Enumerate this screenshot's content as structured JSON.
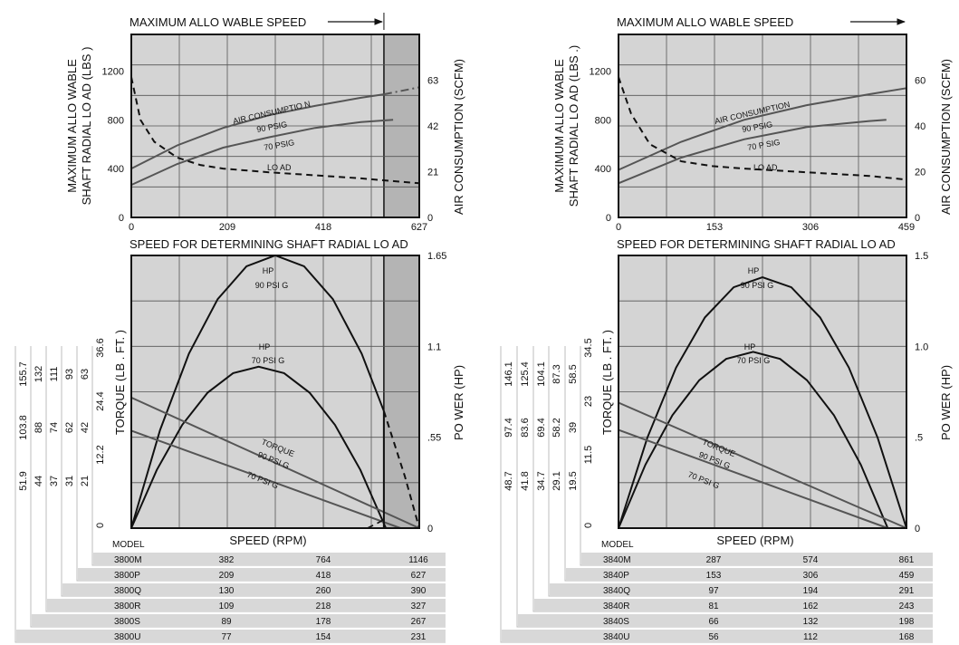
{
  "left": {
    "top_chart": {
      "max_speed_label": "MAXIMUM ALLO   WABLE SPEED",
      "y_left_title": [
        "MAXIMUM ALLO   WABLE",
        "SHAFT RADIAL LO    AD (LBS  )"
      ],
      "y_right_title": "AIR CONSUMPTION (SCFM)",
      "x_title": "SPEED FOR DETERMINING SHAFT RADIAL LO          AD",
      "x_ticks": [
        "0",
        "209",
        "418",
        "627"
      ],
      "y_left_ticks": [
        "0",
        "400",
        "800",
        "1200"
      ],
      "y_right_ticks": [
        "0",
        "21",
        "42",
        "63"
      ],
      "curve_labels": {
        "air": "AIR CONSUMPTIO     N",
        "psi90": "90 PSIG",
        "psi70": "70 PSIG",
        "load": "LO    AD"
      }
    },
    "bottom_chart": {
      "y_left_title": "TORQUE (LB    . FT. )",
      "y_right_title": "PO WER (HP)",
      "x_title": "SPEED (RPM)",
      "y_right_ticks": [
        "0",
        ".55",
        "1.1",
        "1.65"
      ],
      "hp_labels": [
        "HP",
        "90 PSI   G",
        "HP",
        "70 PSI   G"
      ],
      "torque_labels": [
        "TORQUE",
        "90 PSI   G",
        "70 PSI   G"
      ],
      "torque_columns": [
        [
          "0",
          "12.2",
          "24.4",
          "36.6"
        ],
        [
          "21",
          "42",
          "63"
        ],
        [
          "31",
          "62",
          "93"
        ],
        [
          "37",
          "74",
          "111"
        ],
        [
          "44",
          "88",
          "132"
        ],
        [
          "51.9",
          "103.8",
          "155.7"
        ]
      ]
    },
    "table": {
      "header": "MODEL",
      "rows": [
        [
          "3800M",
          "382",
          "764",
          "1146"
        ],
        [
          "3800P",
          "209",
          "418",
          "627"
        ],
        [
          "3800Q",
          "130",
          "260",
          "390"
        ],
        [
          "3800R",
          "109",
          "218",
          "327"
        ],
        [
          "3800S",
          "89",
          "178",
          "267"
        ],
        [
          "3800U",
          "77",
          "154",
          "231"
        ]
      ]
    }
  },
  "right": {
    "top_chart": {
      "max_speed_label": "MAXIMUM ALLO   WABLE SPEED",
      "y_left_title": [
        "MAXIMUM ALLO   WABLE",
        "SHAFT RADIAL LO    AD (LBS  .)"
      ],
      "y_right_title": "AIR CONSUMPTION (SCFM)",
      "x_title": "SPEED FOR DETERMINING SHAFT RADIAL LO          AD",
      "x_ticks": [
        "0",
        "153",
        "306",
        "459"
      ],
      "y_left_ticks": [
        "0",
        "400",
        "800",
        "1200"
      ],
      "y_right_ticks": [
        "0",
        "20",
        "40",
        "60"
      ],
      "curve_labels": {
        "air": "AIR CONSUMPTION",
        "psi90": "90 PSIG",
        "psi70": "70 P SIG",
        "load": "LO  AD"
      }
    },
    "bottom_chart": {
      "y_left_title": "TORQUE (LB    . FT. )",
      "y_right_title": "PO WER (HP)",
      "x_title": "SPEED (RPM)",
      "y_right_ticks": [
        "0",
        ".5",
        "1.0",
        "1.5"
      ],
      "hp_labels": [
        "HP",
        "90 PSI   G",
        "HP",
        "70 PSI   G"
      ],
      "torque_labels": [
        "TORQUE",
        "90 PSI   G",
        "70 PSI   G"
      ],
      "torque_columns": [
        [
          "0",
          "11.5",
          "23",
          "34.5"
        ],
        [
          "19.5",
          "39",
          "58.5"
        ],
        [
          "29.1",
          "58.2",
          "87.3"
        ],
        [
          "34.7",
          "69.4",
          "104.1"
        ],
        [
          "41.8",
          "83.6",
          "125.4"
        ],
        [
          "48.7",
          "97.4",
          "146.1"
        ]
      ]
    },
    "table": {
      "header": "MODEL",
      "rows": [
        [
          "3840M",
          "287",
          "574",
          "861"
        ],
        [
          "3840P",
          "153",
          "306",
          "459"
        ],
        [
          "3840Q",
          "97",
          "194",
          "291"
        ],
        [
          "3840R",
          "81",
          "162",
          "243"
        ],
        [
          "3840S",
          "66",
          "132",
          "198"
        ],
        [
          "3840U",
          "56",
          "112",
          "168"
        ]
      ]
    }
  },
  "colors": {
    "plot_bg": "#d4d4d4",
    "over_speed": "#b4b4b4",
    "grid": "#555555",
    "curve": "#555555",
    "dark": "#111111",
    "table_band": "#d8d8d8"
  },
  "chart_data": [
    {
      "type": "line",
      "title": "MAXIMUM ALLO   WABLE SPEED",
      "xlabel": "SPEED FOR DETERMINING SHAFT RADIAL LO          AD",
      "ylabel": "MAXIMUM ALLO   WABLE SHAFT RADIAL LO    AD (LBS  )",
      "y2label": "AIR CONSUMPTION (SCFM)",
      "xlim": [
        0,
        627
      ],
      "ylim": [
        0,
        1500
      ],
      "y2lim": [
        0,
        78.75
      ],
      "max_speed": 550,
      "grid": true,
      "series": [
        {
          "name": "AIR CONSUMPTIO     N",
          "label2": "90 PSIG",
          "axis": "right",
          "style": "solid",
          "x": [
            0,
            100,
            200,
            300,
            400,
            500,
            550
          ],
          "y": [
            21,
            31,
            38.5,
            44,
            48,
            51.5,
            53
          ]
        },
        {
          "axis": "right",
          "style": "dashdot",
          "x": [
            550,
            627
          ],
          "y": [
            53,
            56
          ]
        },
        {
          "name": "70 PSIG",
          "axis": "right",
          "style": "solid",
          "x": [
            0,
            100,
            200,
            300,
            400,
            500,
            570
          ],
          "y": [
            14,
            23,
            30,
            34.5,
            38.5,
            41,
            42
          ]
        },
        {
          "name": "LO    AD",
          "axis": "left",
          "style": "dashed",
          "x": [
            0,
            20,
            50,
            100,
            150,
            200,
            300,
            400,
            500,
            627
          ],
          "y": [
            1150,
            800,
            620,
            490,
            430,
            400,
            370,
            345,
            320,
            280
          ]
        }
      ]
    },
    {
      "type": "line",
      "xlabel": "SPEED (RPM)",
      "ylabel": "TORQUE (LB    . FT. )",
      "y2label": "PO WER (HP)",
      "xlim": [
        0,
        1
      ],
      "ylim": [
        0,
        1.65
      ],
      "y2lim": [
        0,
        1.65
      ],
      "x_units": "fraction of free speed",
      "max_speed_fraction": 0.877,
      "grid": true,
      "series": [
        {
          "name": "HP 90 PSI   G",
          "style": "solid",
          "x": [
            0,
            0.1,
            0.2,
            0.3,
            0.4,
            0.5,
            0.6,
            0.7,
            0.8,
            0.877
          ],
          "y": [
            0,
            0.594,
            1.056,
            1.386,
            1.584,
            1.65,
            1.584,
            1.386,
            1.056,
            0.708
          ]
        },
        {
          "style": "dashed",
          "x": [
            0.877,
            0.95,
            1.0
          ],
          "y": [
            0.708,
            0.313,
            0
          ]
        },
        {
          "name": "HP 70 PSI   G",
          "style": "solid",
          "x": [
            0,
            0.0884,
            0.1768,
            0.2652,
            0.3536,
            0.442,
            0.5304,
            0.6188,
            0.7072,
            0.7956,
            0.884
          ],
          "y": [
            0,
            0.352,
            0.625,
            0.82,
            0.938,
            0.977,
            0.938,
            0.82,
            0.625,
            0.352,
            0
          ]
        },
        {
          "name": "TORQUE 90 PSI   G",
          "style": "solid",
          "x": [
            0,
            1.0
          ],
          "y": [
            0.79,
            0
          ]
        },
        {
          "name": "TORQUE 70 PSI   G",
          "style": "solid",
          "x": [
            0,
            0.935
          ],
          "y": [
            0.59,
            0
          ]
        }
      ]
    },
    {
      "type": "line",
      "title": "MAXIMUM ALLO   WABLE SPEED",
      "xlabel": "SPEED FOR DETERMINING SHAFT RADIAL LO          AD",
      "ylabel": "MAXIMUM ALLO   WABLE SHAFT RADIAL LO    AD (LBS  .)",
      "y2label": "AIR CONSUMPTION (SCFM)",
      "xlim": [
        0,
        459
      ],
      "ylim": [
        0,
        1500
      ],
      "y2lim": [
        0,
        75
      ],
      "grid": true,
      "series": [
        {
          "name": "AIR CONSUMPTION",
          "label2": "90 PSIG",
          "axis": "right",
          "style": "solid",
          "x": [
            0,
            100,
            200,
            300,
            400,
            459
          ],
          "y": [
            19.5,
            31,
            40,
            46,
            50.5,
            53
          ]
        },
        {
          "name": "70 P SIG",
          "axis": "right",
          "style": "solid",
          "x": [
            0,
            100,
            200,
            300,
            400,
            427
          ],
          "y": [
            14,
            24.5,
            32,
            37,
            39.5,
            40
          ]
        },
        {
          "name": "LO  AD",
          "axis": "left",
          "style": "dashed",
          "x": [
            0,
            20,
            50,
            100,
            150,
            200,
            300,
            400,
            459
          ],
          "y": [
            1150,
            850,
            600,
            460,
            420,
            400,
            370,
            340,
            310
          ]
        }
      ]
    },
    {
      "type": "line",
      "xlabel": "SPEED (RPM)",
      "ylabel": "TORQUE (LB    . FT. )",
      "y2label": "PO WER (HP)",
      "xlim": [
        0,
        1
      ],
      "ylim": [
        0,
        1.5
      ],
      "y2lim": [
        0,
        1.5
      ],
      "x_units": "fraction of free speed",
      "grid": true,
      "series": [
        {
          "name": "HP 90 PSI   G",
          "style": "solid",
          "x": [
            0,
            0.1,
            0.2,
            0.3,
            0.4,
            0.5,
            0.6,
            0.7,
            0.8,
            0.9,
            1.0
          ],
          "y": [
            0,
            0.497,
            0.883,
            1.159,
            1.325,
            1.38,
            1.325,
            1.159,
            0.883,
            0.497,
            0
          ]
        },
        {
          "name": "HP 70 PSI   G",
          "style": "solid",
          "x": [
            0,
            0.0935,
            0.187,
            0.2805,
            0.374,
            0.4675,
            0.561,
            0.6545,
            0.748,
            0.8415,
            0.935
          ],
          "y": [
            0,
            0.349,
            0.621,
            0.814,
            0.931,
            0.97,
            0.931,
            0.814,
            0.621,
            0.349,
            0
          ]
        },
        {
          "name": "TORQUE 90 PSI   G",
          "style": "solid",
          "x": [
            0,
            1.0
          ],
          "y": [
            0.69,
            0
          ]
        },
        {
          "name": "TORQUE 70 PSI   G",
          "style": "solid",
          "x": [
            0,
            0.935
          ],
          "y": [
            0.54,
            0
          ]
        }
      ]
    }
  ]
}
